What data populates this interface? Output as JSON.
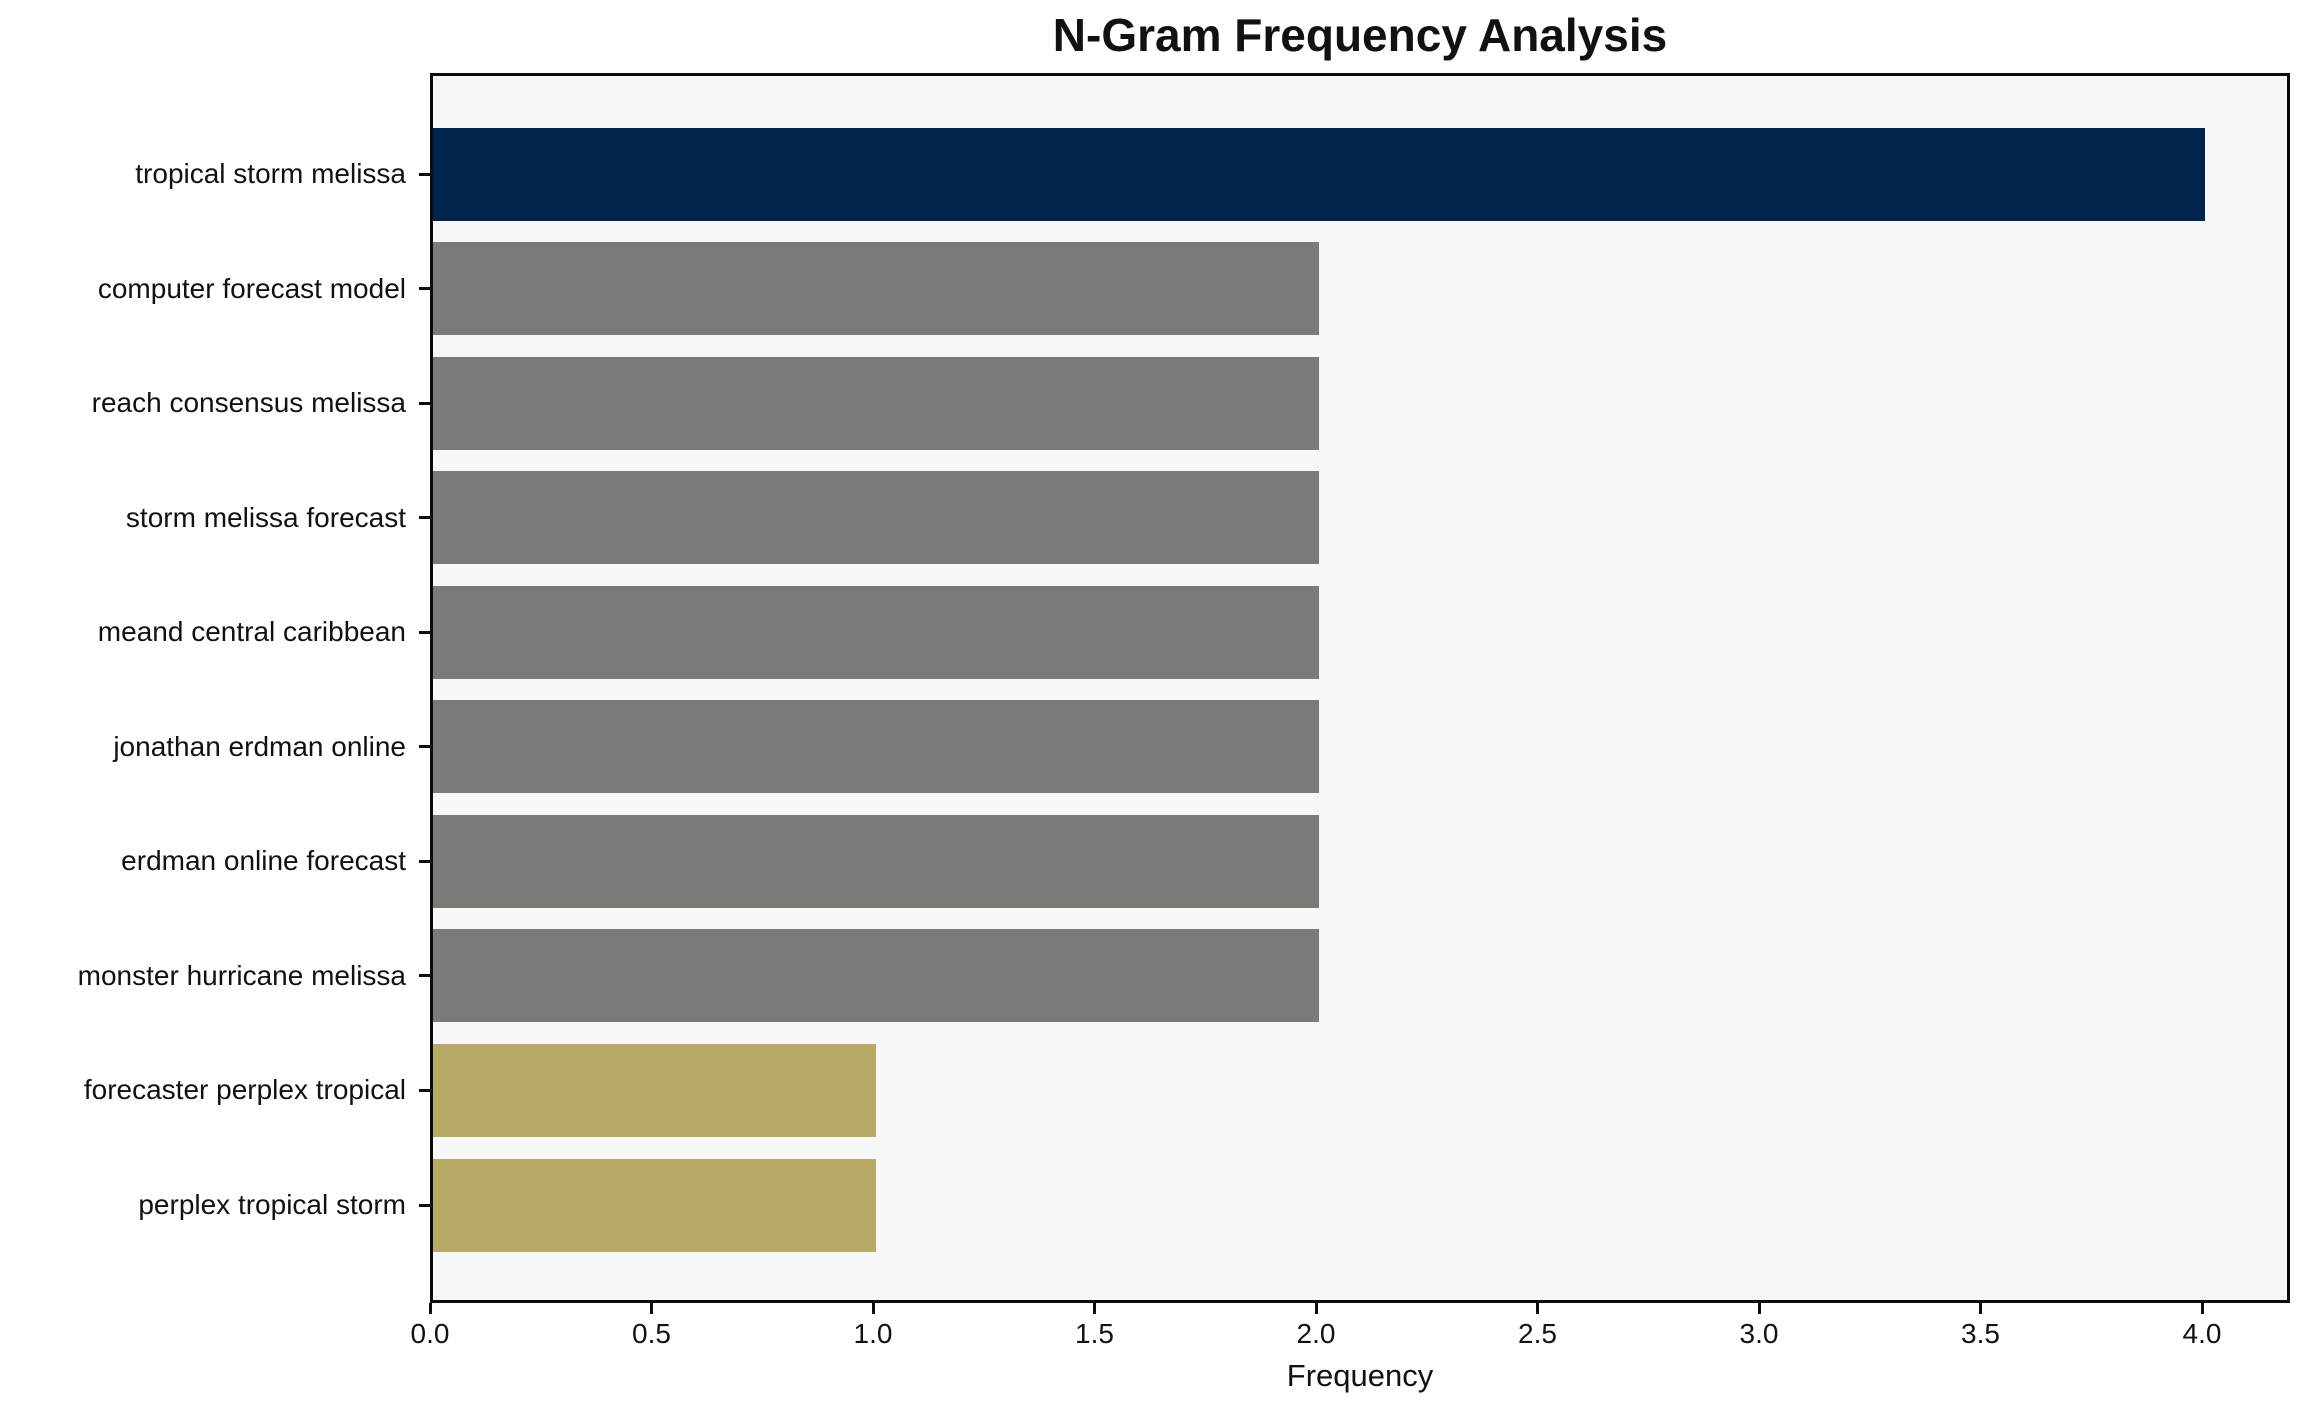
{
  "title": "N-Gram Frequency Analysis",
  "chart_data": {
    "type": "bar",
    "orientation": "horizontal",
    "title": "N-Gram Frequency Analysis",
    "xlabel": "Frequency",
    "ylabel": "",
    "categories": [
      "tropical storm melissa",
      "computer forecast model",
      "reach consensus melissa",
      "storm melissa forecast",
      "meand central caribbean",
      "jonathan erdman online",
      "erdman online forecast",
      "monster hurricane melissa",
      "forecaster perplex tropical",
      "perplex tropical storm"
    ],
    "values": [
      4,
      2,
      2,
      2,
      2,
      2,
      2,
      2,
      1,
      1
    ],
    "bar_colors": [
      "#02234c",
      "#7b7a76",
      "#7b7a76",
      "#7b7a76",
      "#7b7a76",
      "#7b7a76",
      "#7b7a76",
      "#7b7a76",
      "#b8a967",
      "#b8a967"
    ],
    "xlim": [
      0,
      4.2
    ],
    "xticks": [
      0.0,
      0.5,
      1.0,
      1.5,
      2.0,
      2.5,
      3.0,
      3.5,
      4.0
    ],
    "xtick_labels": [
      "0.0",
      "0.5",
      "1.0",
      "1.5",
      "2.0",
      "2.5",
      "3.0",
      "3.5",
      "4.0"
    ],
    "grid": false,
    "legend_position": "none",
    "plot_background": "#f7f7f7",
    "figure_background": "#ffffff",
    "axis_color": "#0d0d0d"
  }
}
